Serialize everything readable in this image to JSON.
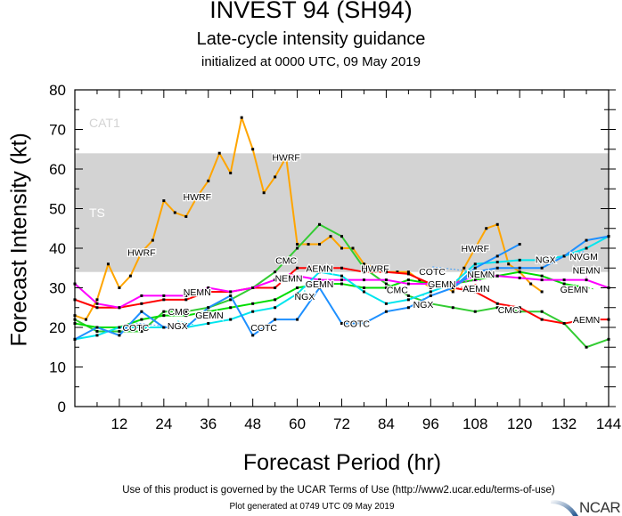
{
  "header": {
    "title": "INVEST 94 (SH94)",
    "subtitle": "Late-cycle intensity guidance",
    "initialized": "initialized at 0000 UTC, 09 May 2019"
  },
  "footer": {
    "terms": "Use of this product is governed by the UCAR Terms of Use (http://www2.ucar.edu/terms-of-use)",
    "generated": "Plot generated at 0749 UTC   09 May 2019",
    "logo": "NCAR"
  },
  "chart_data": {
    "type": "line",
    "xlabel": "Forecast Period (hr)",
    "ylabel": "Forecast Intensity (kt)",
    "xlim": [
      0,
      144
    ],
    "ylim": [
      0,
      80
    ],
    "xticks": [
      12,
      24,
      36,
      48,
      60,
      72,
      84,
      96,
      108,
      120,
      132,
      144
    ],
    "yticks": [
      0,
      10,
      20,
      30,
      40,
      50,
      60,
      70,
      80
    ],
    "grid": false,
    "bands": [
      {
        "name": "TS",
        "from": 34,
        "to": 64,
        "color": "#d3d3d3",
        "label_color": "#ffffff"
      },
      {
        "name": "CAT1",
        "from": 64,
        "to": 83,
        "color": "#ffffff",
        "label_color": "#d3d3d3"
      }
    ],
    "series": [
      {
        "name": "HWRF",
        "color": "#ffa500",
        "label_at": [
          18,
          33,
          57,
          81,
          108
        ],
        "x": [
          0,
          3,
          6,
          9,
          12,
          15,
          18,
          21,
          24,
          27,
          30,
          33,
          36,
          39,
          42,
          45,
          48,
          51,
          54,
          57,
          60,
          63,
          66,
          69,
          72,
          75,
          78,
          84,
          87,
          90,
          93,
          96,
          99,
          102,
          105,
          108,
          111,
          114,
          117,
          120,
          123,
          126
        ],
        "y": [
          23,
          22,
          27,
          36,
          30,
          33,
          39,
          42,
          52,
          49,
          48,
          53,
          57,
          64,
          59,
          73,
          65,
          54,
          58,
          63,
          41,
          41,
          41,
          43,
          40,
          40,
          36,
          34,
          34,
          34,
          32,
          30,
          31,
          29,
          35,
          40,
          45,
          46,
          36,
          34,
          31,
          29
        ]
      },
      {
        "name": "CMC",
        "color": "#33cc33",
        "label_at": [
          28,
          57,
          87,
          117
        ],
        "x": [
          0,
          6,
          12,
          18,
          24,
          30,
          36,
          42,
          48,
          54,
          60,
          66,
          72,
          78,
          84,
          90,
          96,
          102,
          108,
          114,
          120,
          126,
          132,
          138,
          144
        ],
        "y": [
          22,
          19,
          19,
          19,
          24,
          24,
          25,
          27,
          30,
          34,
          40,
          46,
          43,
          35,
          31,
          28,
          26,
          25,
          24,
          25,
          24,
          24,
          21,
          15,
          17
        ]
      },
      {
        "name": "GEMN",
        "color": "#00dd00",
        "label_at": [
          31,
          66,
          99,
          140
        ],
        "x": [
          0,
          6,
          12,
          18,
          24,
          30,
          36,
          42,
          48,
          54,
          60,
          66,
          72,
          78,
          84,
          90,
          96,
          102,
          108,
          114,
          120,
          126,
          132,
          138
        ],
        "y": [
          21,
          20,
          20,
          22,
          23,
          23,
          24,
          25,
          26,
          27,
          30,
          31,
          31,
          30,
          30,
          32,
          31,
          31,
          32,
          33,
          34,
          33,
          31,
          30
        ]
      },
      {
        "name": "AEMN",
        "color": "#ff0000",
        "label_at": [
          66,
          103,
          138
        ],
        "x": [
          0,
          6,
          12,
          18,
          24,
          30,
          36,
          42,
          48,
          54,
          60,
          66,
          72,
          78,
          84,
          90,
          96,
          102,
          108,
          114,
          120,
          126,
          132,
          138,
          144
        ],
        "y": [
          27,
          25,
          25,
          26,
          27,
          27,
          29,
          29,
          30,
          30,
          35,
          35,
          35,
          34,
          34,
          33.5,
          31,
          30,
          29,
          26,
          25,
          22,
          21,
          22,
          22
        ]
      },
      {
        "name": "NEMN",
        "color": "#ff00ff",
        "label_at": [
          33,
          63,
          99,
          138
        ],
        "x": [
          0,
          6,
          12,
          18,
          24,
          30,
          36,
          42,
          48,
          54,
          60,
          66,
          72,
          78,
          84,
          90,
          96,
          102,
          108,
          114,
          120,
          126,
          132,
          138,
          144
        ],
        "y": [
          31,
          26,
          25,
          28,
          28,
          28,
          30,
          29,
          30,
          32,
          33,
          32,
          32,
          32,
          32,
          31,
          31,
          31,
          33,
          33,
          32.5,
          32,
          32,
          32,
          30
        ]
      },
      {
        "name": "NGX",
        "color": "#00e5ee",
        "label_at": [
          33,
          62,
          94,
          127
        ],
        "x": [
          0,
          6,
          12,
          18,
          24,
          30,
          36,
          42,
          48,
          54,
          60,
          66,
          72,
          78,
          84,
          90,
          96,
          102,
          108,
          114,
          120,
          126,
          132,
          138,
          144
        ],
        "y": [
          17,
          18,
          20,
          20,
          20,
          20,
          21,
          22,
          24,
          25,
          28.5,
          34,
          33,
          29,
          26,
          27,
          29,
          31,
          36,
          36.5,
          37,
          37,
          38,
          40,
          43
        ]
      },
      {
        "name": "COTC",
        "color": "#1e90ff",
        "label_at": [
          27,
          51,
          76,
          107
        ],
        "x": [
          0,
          6,
          12,
          18,
          24,
          30,
          36,
          42,
          48,
          54,
          60,
          66,
          72,
          78,
          84,
          90,
          96,
          102,
          108,
          114,
          120
        ],
        "y": [
          17,
          20,
          18,
          24,
          20,
          20,
          25,
          28,
          18,
          22,
          22,
          30,
          21,
          21,
          24,
          25,
          28,
          30,
          35,
          38,
          41
        ]
      },
      {
        "name": "NVGM",
        "color": "#1e90ff",
        "label_at": [
          132
        ],
        "x": [
          102,
          108,
          114,
          120,
          126,
          132,
          138,
          144
        ],
        "y": [
          30,
          34,
          35,
          35,
          35,
          38,
          42,
          43
        ]
      }
    ]
  }
}
